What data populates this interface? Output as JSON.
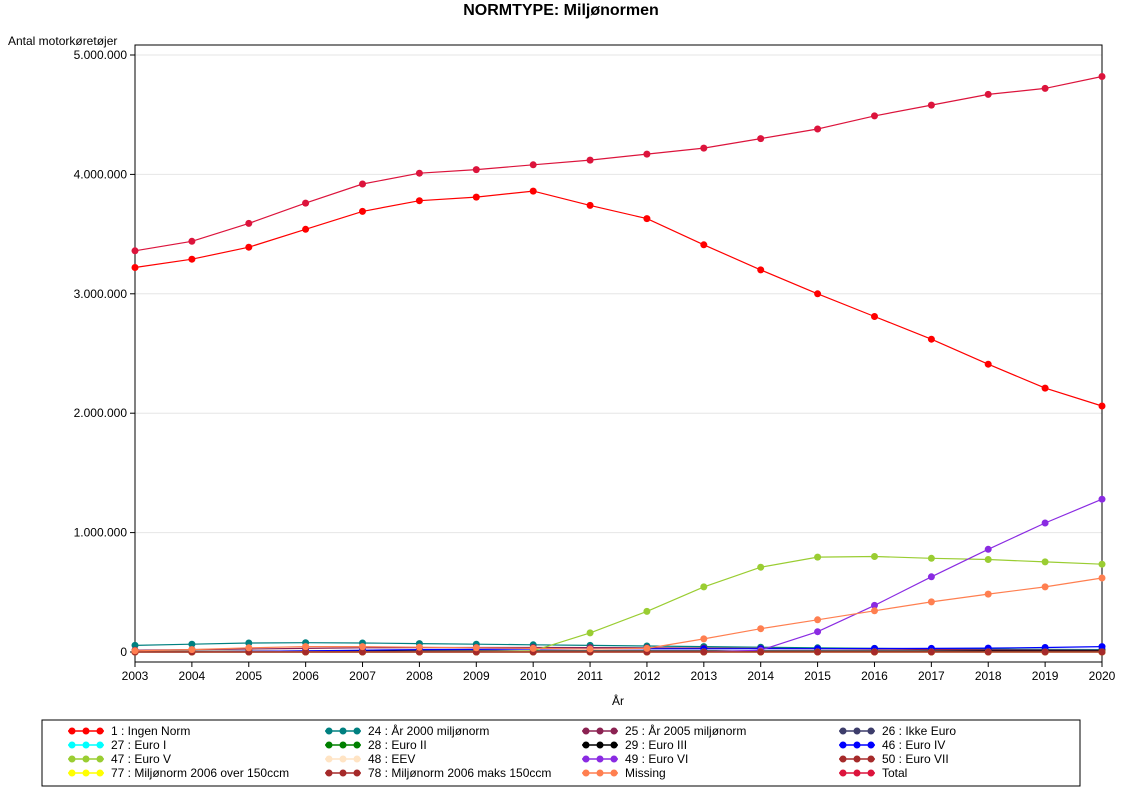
{
  "chart_data": {
    "type": "line",
    "title": "NORMTYPE: Miljønormen",
    "xlabel": "År",
    "ylabel": "Antal motorkøretøjer",
    "x": [
      2003,
      2004,
      2005,
      2006,
      2007,
      2008,
      2009,
      2010,
      2011,
      2012,
      2013,
      2014,
      2015,
      2016,
      2017,
      2018,
      2019,
      2020
    ],
    "ylim": [
      0,
      5000000
    ],
    "y_ticks": [
      0,
      1000000,
      2000000,
      3000000,
      4000000,
      5000000
    ],
    "y_tick_labels": [
      "0",
      "1.000.000",
      "2.000.000",
      "3.000.000",
      "4.000.000",
      "5.000.000"
    ],
    "grid": "horizontal",
    "legend_position": "bottom",
    "series": [
      {
        "name": "1 : Ingen Norm",
        "color": "#ff0000",
        "values": [
          3220000,
          3290000,
          3390000,
          3540000,
          3690000,
          3780000,
          3810000,
          3860000,
          3740000,
          3630000,
          3410000,
          3200000,
          3000000,
          2810000,
          2620000,
          2410000,
          2210000,
          2060000
        ]
      },
      {
        "name": "24 : År 2000 miljønorm",
        "color": "#008080",
        "values": [
          55000,
          65000,
          75000,
          78000,
          75000,
          70000,
          65000,
          60000,
          55000,
          50000,
          45000,
          40000,
          35000,
          30000,
          27000,
          24000,
          22000,
          20000
        ]
      },
      {
        "name": "25 : År 2005 miljønorm",
        "color": "#8b2252",
        "values": [
          15000,
          20000,
          25000,
          30000,
          35000,
          37000,
          38000,
          38000,
          37000,
          35000,
          33000,
          30000,
          27000,
          24000,
          21000,
          18000,
          16000,
          14000
        ]
      },
      {
        "name": "26 : Ikke Euro",
        "color": "#3d3d6b",
        "values": [
          2000,
          2000,
          2000,
          2000,
          2000,
          2000,
          2000,
          2000,
          2000,
          2000,
          2000,
          2000,
          2000,
          2000,
          2000,
          2000,
          2000,
          2000
        ]
      },
      {
        "name": "27 : Euro I",
        "color": "#00ffff",
        "values": [
          1000,
          1000,
          1000,
          1000,
          1000,
          1000,
          1000,
          1000,
          1000,
          1000,
          1000,
          1000,
          1000,
          1000,
          1000,
          1000,
          1000,
          1000
        ]
      },
      {
        "name": "28 : Euro II",
        "color": "#008000",
        "values": [
          3000,
          3000,
          3000,
          3000,
          3000,
          3000,
          3000,
          3000,
          3000,
          3000,
          3000,
          3000,
          3000,
          3000,
          3000,
          3000,
          3000,
          3000
        ]
      },
      {
        "name": "29 : Euro III",
        "color": "#000000",
        "values": [
          5000,
          6000,
          7000,
          8000,
          8000,
          8000,
          8000,
          8000,
          8000,
          8000,
          8000,
          8000,
          8000,
          8000,
          8000,
          8000,
          8000,
          8000
        ]
      },
      {
        "name": "46 : Euro IV",
        "color": "#0000ff",
        "values": [
          0,
          0,
          5000,
          10000,
          15000,
          20000,
          22000,
          25000,
          26000,
          27000,
          27000,
          28000,
          28000,
          29000,
          30000,
          33000,
          38000,
          45000
        ]
      },
      {
        "name": "47 : Euro V",
        "color": "#9acd32",
        "values": [
          0,
          0,
          0,
          0,
          0,
          0,
          0,
          10000,
          160000,
          340000,
          545000,
          710000,
          795000,
          800000,
          785000,
          775000,
          755000,
          735000
        ]
      },
      {
        "name": "48 : EEV",
        "color": "#ffe4c4",
        "values": [
          0,
          0,
          0,
          0,
          0,
          0,
          0,
          0,
          0,
          0,
          0,
          0,
          0,
          0,
          0,
          0,
          0,
          0
        ]
      },
      {
        "name": "49 : Euro VI",
        "color": "#8a2be2",
        "values": [
          0,
          0,
          0,
          0,
          0,
          0,
          0,
          0,
          0,
          0,
          0,
          15000,
          170000,
          390000,
          630000,
          860000,
          1080000,
          1280000
        ]
      },
      {
        "name": "50 : Euro VII",
        "color": "#a52a2a",
        "values": [
          0,
          0,
          0,
          0,
          0,
          0,
          0,
          0,
          0,
          0,
          0,
          0,
          0,
          0,
          0,
          0,
          0,
          0
        ]
      },
      {
        "name": "77 : Miljønorm 2006 over 150ccm",
        "color": "#ffff00",
        "values": [
          0,
          0,
          0,
          0,
          0,
          0,
          0,
          0,
          0,
          0,
          0,
          0,
          0,
          0,
          0,
          0,
          0,
          0
        ]
      },
      {
        "name": "78 : Miljønorm 2006 maks 150ccm",
        "color": "#a52a2a",
        "values": [
          0,
          0,
          0,
          0,
          0,
          0,
          0,
          0,
          0,
          0,
          0,
          0,
          0,
          0,
          0,
          0,
          0,
          0
        ]
      },
      {
        "name": "Missing",
        "color": "#ff7f50",
        "values": [
          10000,
          20000,
          35000,
          45000,
          45000,
          40000,
          35000,
          30000,
          25000,
          30000,
          110000,
          195000,
          270000,
          345000,
          420000,
          485000,
          545000,
          620000
        ]
      },
      {
        "name": "Total",
        "color": "#dc143c",
        "values": [
          3360000,
          3440000,
          3590000,
          3760000,
          3920000,
          4010000,
          4040000,
          4080000,
          4120000,
          4170000,
          4220000,
          4300000,
          4380000,
          4490000,
          4580000,
          4670000,
          4720000,
          4820000
        ]
      }
    ]
  }
}
